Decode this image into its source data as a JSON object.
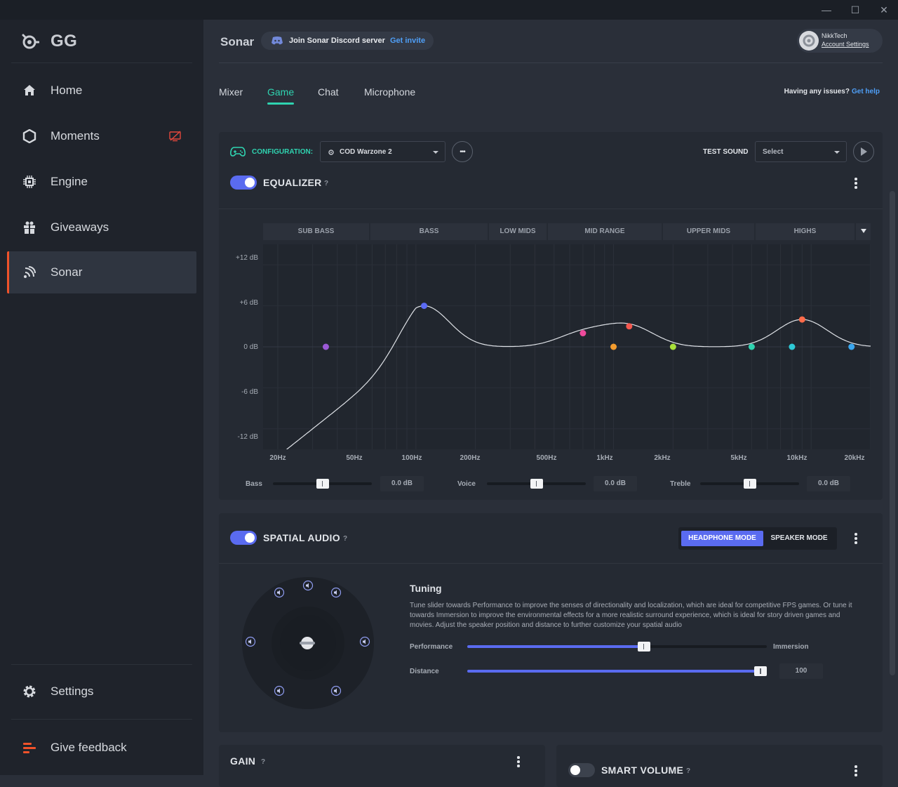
{
  "app": {
    "logo_text": "GG"
  },
  "window_controls": {
    "minimize": "—",
    "maximize": "☐",
    "close": "✕"
  },
  "sidebar": {
    "items": [
      {
        "label": "Home",
        "icon": "home-icon"
      },
      {
        "label": "Moments",
        "icon": "moments-icon"
      },
      {
        "label": "Engine",
        "icon": "engine-icon"
      },
      {
        "label": "Giveaways",
        "icon": "giveaways-icon"
      },
      {
        "label": "Sonar",
        "icon": "sonar-icon",
        "active": true
      }
    ],
    "bottom": [
      {
        "label": "Settings",
        "icon": "gear-icon"
      },
      {
        "label": "Give feedback",
        "icon": "feedback-icon"
      }
    ]
  },
  "header": {
    "title": "Sonar",
    "discord": {
      "text": "Join Sonar Discord server",
      "link": "Get invite"
    },
    "account": {
      "name": "NikkTech",
      "settings": "Account Settings"
    }
  },
  "tabs": {
    "items": [
      "Mixer",
      "Game",
      "Chat",
      "Microphone"
    ],
    "active": "Game"
  },
  "help": {
    "text": "Having any issues?",
    "link": "Get help"
  },
  "config": {
    "label": "CONFIGURATION:",
    "value": "COD Warzone 2",
    "more": "•••",
    "test_sound_label": "TEST SOUND",
    "test_sound_value": "Select"
  },
  "equalizer": {
    "title": "EQUALIZER",
    "help": "?",
    "enabled": true,
    "bands": [
      "SUB BASS",
      "BASS",
      "LOW MIDS",
      "MID RANGE",
      "UPPER MIDS",
      "HIGHS"
    ],
    "db_labels": [
      "+12 dB",
      "+6 dB",
      "0 dB",
      "-6 dB",
      "-12 dB"
    ],
    "freq_labels": [
      "20Hz",
      "50Hz",
      "100Hz",
      "200Hz",
      "500Hz",
      "1kHz",
      "2kHz",
      "5kHz",
      "10kHz",
      "20kHz"
    ],
    "points": [
      {
        "freq": 35,
        "gain": 0,
        "color": "#9b59d6"
      },
      {
        "freq": 110,
        "gain": 6,
        "color": "#5b6bf5"
      },
      {
        "freq": 700,
        "gain": 2,
        "color": "#ee4a9c"
      },
      {
        "freq": 1000,
        "gain": 0,
        "color": "#f39c2e"
      },
      {
        "freq": 1200,
        "gain": 3,
        "color": "#f5584f"
      },
      {
        "freq": 2000,
        "gain": 0,
        "color": "#a8e03a"
      },
      {
        "freq": 5000,
        "gain": 0,
        "color": "#2fd3b0"
      },
      {
        "freq": 8000,
        "gain": 0,
        "color": "#2ec9d6"
      },
      {
        "freq": 9000,
        "gain": 4,
        "color": "#ff6b4a"
      },
      {
        "freq": 16000,
        "gain": 0,
        "color": "#3aa6ee"
      }
    ],
    "sliders": [
      {
        "label": "Bass",
        "value": "0.0 dB",
        "level": 0.5
      },
      {
        "label": "Voice",
        "value": "0.0 dB",
        "level": 0.5
      },
      {
        "label": "Treble",
        "value": "0.0 dB",
        "level": 0.5
      }
    ]
  },
  "spatial": {
    "title": "SPATIAL AUDIO",
    "help": "?",
    "enabled": true,
    "modes": [
      "HEADPHONE MODE",
      "SPEAKER MODE"
    ],
    "active_mode": "HEADPHONE MODE",
    "tuning_title": "Tuning",
    "tuning_desc": "Tune slider towards Performance to improve the senses of directionality and localization, which are ideal for competitive FPS games. Or tune it towards Immersion to improve the environmental effects for a more realistic surround experience, which is ideal for story driven games and movies. Adjust the speaker position and distance to further customize your spatial audio",
    "performance_label": "Performance",
    "immersion_label": "Immersion",
    "performance_level": 0.59,
    "distance_label": "Distance",
    "distance_value": "100",
    "distance_level": 1.0
  },
  "gain": {
    "title": "GAIN",
    "help": "?"
  },
  "smart_volume": {
    "title": "SMART VOLUME",
    "help": "?",
    "enabled": false
  }
}
